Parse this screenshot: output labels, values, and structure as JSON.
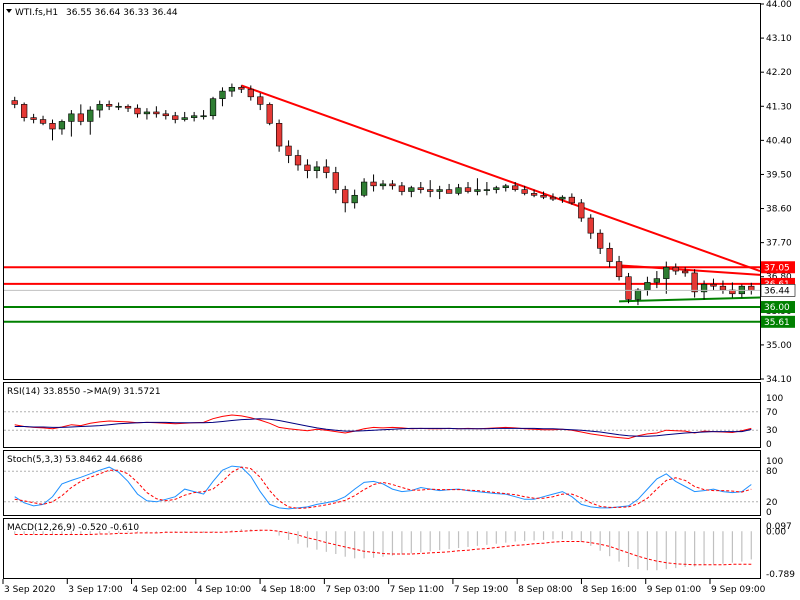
{
  "header": {
    "symbol": "WTI.fs,H1",
    "ohlc": "36.55 36.64 36.33 36.44"
  },
  "colors": {
    "bull": "#2e7d32",
    "bear": "#e53935",
    "resistance": "#ff0000",
    "support": "#008000",
    "price_tag": "#ffffff",
    "rsi": "#ff0000",
    "rsi_ma": "#000080",
    "stoch_main": "#1e90ff",
    "stoch_signal": "#ff0000",
    "macd_hist": "#c0c0c0",
    "macd_signal": "#ff0000"
  },
  "chart_data": [
    {
      "type": "candlestick",
      "name": "price",
      "ylim": [
        34.1,
        44.0
      ],
      "y_ticks": [
        "44.00",
        "43.10",
        "42.20",
        "41.30",
        "40.40",
        "39.50",
        "38.60",
        "37.70",
        "36.80",
        "35.90",
        "35.00",
        "34.10"
      ],
      "x_ticks": [
        "3 Sep 2020",
        "3 Sep 17:00",
        "4 Sep 02:00",
        "4 Sep 10:00",
        "4 Sep 18:00",
        "7 Sep 03:00",
        "7 Sep 11:00",
        "7 Sep 19:00",
        "8 Sep 08:00",
        "8 Sep 16:00",
        "9 Sep 01:00",
        "9 Sep 09:00"
      ],
      "candles": [
        [
          41.45,
          41.55,
          41.25,
          41.35
        ],
        [
          41.35,
          41.4,
          40.9,
          41.0
        ],
        [
          41.0,
          41.1,
          40.85,
          40.95
        ],
        [
          40.95,
          41.05,
          40.8,
          40.85
        ],
        [
          40.85,
          40.95,
          40.4,
          40.7
        ],
        [
          40.7,
          40.95,
          40.55,
          40.9
        ],
        [
          40.9,
          41.2,
          40.5,
          41.1
        ],
        [
          41.1,
          41.35,
          40.8,
          40.9
        ],
        [
          40.9,
          41.3,
          40.55,
          41.2
        ],
        [
          41.2,
          41.45,
          41.0,
          41.35
        ],
        [
          41.35,
          41.45,
          41.2,
          41.3
        ],
        [
          41.3,
          41.4,
          41.2,
          41.3
        ],
        [
          41.3,
          41.35,
          41.15,
          41.25
        ],
        [
          41.25,
          41.35,
          41.0,
          41.1
        ],
        [
          41.1,
          41.25,
          40.95,
          41.15
        ],
        [
          41.15,
          41.3,
          41.0,
          41.1
        ],
        [
          41.1,
          41.2,
          40.95,
          41.05
        ],
        [
          41.05,
          41.15,
          40.85,
          40.95
        ],
        [
          40.95,
          41.15,
          40.9,
          41.0
        ],
        [
          41.0,
          41.15,
          40.9,
          41.05
        ],
        [
          41.05,
          41.2,
          40.95,
          41.05
        ],
        [
          41.05,
          41.55,
          40.95,
          41.5
        ],
        [
          41.5,
          41.8,
          41.3,
          41.7
        ],
        [
          41.7,
          41.9,
          41.55,
          41.8
        ],
        [
          41.8,
          41.85,
          41.65,
          41.75
        ],
        [
          41.75,
          41.85,
          41.45,
          41.55
        ],
        [
          41.55,
          41.65,
          41.2,
          41.35
        ],
        [
          41.35,
          41.4,
          40.8,
          40.85
        ],
        [
          40.85,
          40.95,
          40.1,
          40.25
        ],
        [
          40.25,
          40.4,
          39.8,
          40.0
        ],
        [
          40.0,
          40.15,
          39.6,
          39.75
        ],
        [
          39.75,
          39.9,
          39.4,
          39.6
        ],
        [
          39.6,
          39.85,
          39.4,
          39.7
        ],
        [
          39.7,
          39.9,
          39.4,
          39.55
        ],
        [
          39.55,
          39.7,
          39.0,
          39.1
        ],
        [
          39.1,
          39.2,
          38.5,
          38.75
        ],
        [
          38.75,
          39.1,
          38.6,
          38.95
        ],
        [
          38.95,
          39.4,
          38.9,
          39.3
        ],
        [
          39.3,
          39.5,
          39.05,
          39.2
        ],
        [
          39.2,
          39.35,
          39.1,
          39.25
        ],
        [
          39.25,
          39.35,
          39.1,
          39.2
        ],
        [
          39.2,
          39.3,
          38.95,
          39.05
        ],
        [
          39.05,
          39.2,
          38.9,
          39.15
        ],
        [
          39.15,
          39.3,
          39.0,
          39.1
        ],
        [
          39.1,
          39.35,
          38.9,
          39.05
        ],
        [
          39.05,
          39.2,
          38.85,
          39.1
        ],
        [
          39.1,
          39.25,
          39.0,
          39.0
        ],
        [
          39.0,
          39.25,
          38.95,
          39.15
        ],
        [
          39.15,
          39.3,
          39.0,
          39.05
        ],
        [
          39.05,
          39.4,
          38.95,
          39.1
        ],
        [
          39.1,
          39.3,
          38.95,
          39.1
        ],
        [
          39.1,
          39.2,
          39.0,
          39.15
        ],
        [
          39.15,
          39.25,
          39.05,
          39.2
        ],
        [
          39.2,
          39.3,
          39.05,
          39.1
        ],
        [
          39.1,
          39.2,
          38.95,
          39.0
        ],
        [
          39.0,
          39.1,
          38.9,
          38.95
        ],
        [
          38.95,
          39.05,
          38.85,
          38.9
        ],
        [
          38.9,
          39.0,
          38.8,
          38.85
        ],
        [
          38.85,
          38.95,
          38.75,
          38.9
        ],
        [
          38.9,
          39.0,
          38.7,
          38.75
        ],
        [
          38.75,
          38.85,
          38.25,
          38.35
        ],
        [
          38.35,
          38.45,
          37.8,
          37.95
        ],
        [
          37.95,
          38.05,
          37.4,
          37.55
        ],
        [
          37.55,
          37.7,
          37.05,
          37.2
        ],
        [
          37.2,
          37.35,
          36.7,
          36.8
        ],
        [
          36.8,
          36.9,
          36.1,
          36.2
        ],
        [
          36.2,
          36.5,
          36.05,
          36.45
        ],
        [
          36.45,
          36.8,
          36.3,
          36.65
        ],
        [
          36.65,
          36.95,
          36.5,
          36.75
        ],
        [
          36.75,
          37.2,
          36.35,
          37.05
        ],
        [
          37.05,
          37.15,
          36.85,
          36.95
        ],
        [
          36.95,
          37.05,
          36.8,
          36.9
        ],
        [
          36.9,
          37.0,
          36.25,
          36.4
        ],
        [
          36.4,
          36.7,
          36.2,
          36.6
        ],
        [
          36.6,
          36.75,
          36.45,
          36.55
        ],
        [
          36.55,
          36.7,
          36.35,
          36.45
        ],
        [
          36.45,
          36.65,
          36.25,
          36.35
        ],
        [
          36.35,
          36.6,
          36.25,
          36.55
        ],
        [
          36.55,
          36.64,
          36.33,
          36.44
        ]
      ],
      "trendlines": [
        {
          "role": "resistance",
          "points": [
            [
              24,
              41.85
            ],
            [
              80,
              36.95
            ]
          ]
        },
        {
          "role": "resistance",
          "points": [
            [
              64,
              37.1
            ],
            [
              80,
              36.85
            ]
          ]
        },
        {
          "role": "support",
          "points": [
            [
              64,
              36.15
            ],
            [
              80,
              36.25
            ]
          ]
        }
      ],
      "levels": [
        {
          "value": 37.05,
          "label": "37.05",
          "role": "resistance"
        },
        {
          "value": 36.61,
          "label": "36.61",
          "role": "resistance"
        },
        {
          "value": 36.0,
          "label": "36.00",
          "role": "support"
        },
        {
          "value": 35.61,
          "label": "35.61",
          "role": "support"
        }
      ],
      "current_price": {
        "value": 36.44,
        "label": "36.44"
      }
    },
    {
      "type": "line",
      "name": "rsi",
      "label": "RSI(14) 33.8550  ->MA(9) 31.5721",
      "ylim": [
        0,
        100
      ],
      "y_ticks": [
        "100",
        "70",
        "30",
        "0"
      ],
      "levels": [
        70,
        30
      ],
      "series": [
        {
          "role": "rsi",
          "values": [
            42,
            38,
            36,
            35,
            33,
            37,
            42,
            40,
            45,
            48,
            50,
            49,
            48,
            46,
            47,
            46,
            45,
            44,
            45,
            46,
            47,
            55,
            60,
            63,
            61,
            57,
            52,
            45,
            36,
            33,
            31,
            29,
            32,
            30,
            27,
            24,
            28,
            33,
            36,
            35,
            36,
            35,
            33,
            34,
            33,
            33,
            34,
            33,
            34,
            33,
            34,
            35,
            36,
            35,
            33,
            32,
            31,
            31,
            32,
            30,
            26,
            22,
            19,
            16,
            14,
            12,
            18,
            22,
            24,
            30,
            29,
            28,
            24,
            28,
            27,
            26,
            25,
            29,
            33.86
          ]
        },
        {
          "role": "ma",
          "values": [
            38,
            38,
            37,
            37,
            36,
            36,
            37,
            38,
            39,
            40,
            42,
            44,
            45,
            46,
            47,
            47,
            47,
            46,
            46,
            46,
            46,
            47,
            49,
            51,
            53,
            54,
            55,
            54,
            51,
            47,
            43,
            39,
            35,
            32,
            30,
            28,
            28,
            29,
            30,
            31,
            32,
            33,
            34,
            34,
            34,
            34,
            34,
            33,
            33,
            33,
            33,
            34,
            34,
            34,
            34,
            34,
            33,
            33,
            32,
            31,
            30,
            28,
            26,
            23,
            20,
            18,
            17,
            17,
            18,
            20,
            22,
            24,
            25,
            26,
            27,
            27,
            27,
            27,
            31.57
          ]
        }
      ]
    },
    {
      "type": "line",
      "name": "stochastic",
      "label": "Stoch(5,3,3) 53.8462 44.6686",
      "ylim": [
        0,
        100
      ],
      "y_ticks": [
        "100",
        "80",
        "20",
        "0"
      ],
      "levels": [
        80,
        20
      ],
      "series": [
        {
          "role": "main",
          "values": [
            30,
            18,
            12,
            15,
            30,
            55,
            62,
            68,
            75,
            82,
            88,
            78,
            60,
            35,
            22,
            20,
            25,
            30,
            45,
            40,
            35,
            60,
            82,
            90,
            88,
            70,
            40,
            15,
            8,
            6,
            8,
            10,
            15,
            18,
            22,
            30,
            45,
            58,
            60,
            55,
            45,
            40,
            42,
            48,
            45,
            42,
            44,
            45,
            42,
            40,
            38,
            36,
            35,
            30,
            25,
            25,
            30,
            35,
            40,
            30,
            15,
            10,
            8,
            8,
            10,
            12,
            25,
            45,
            65,
            75,
            60,
            50,
            40,
            42,
            45,
            40,
            38,
            40,
            53.85
          ]
        },
        {
          "role": "signal",
          "values": [
            25,
            22,
            18,
            15,
            20,
            32,
            48,
            60,
            68,
            75,
            82,
            82,
            75,
            58,
            38,
            26,
            22,
            25,
            33,
            38,
            40,
            45,
            60,
            78,
            88,
            85,
            68,
            42,
            22,
            10,
            7,
            8,
            11,
            14,
            18,
            23,
            32,
            44,
            54,
            58,
            54,
            48,
            43,
            43,
            45,
            44,
            44,
            44,
            43,
            42,
            40,
            38,
            36,
            34,
            30,
            27,
            27,
            30,
            35,
            35,
            28,
            18,
            11,
            9,
            9,
            10,
            16,
            27,
            45,
            62,
            67,
            62,
            50,
            44,
            42,
            42,
            41,
            39,
            44.67
          ]
        }
      ]
    },
    {
      "type": "bar",
      "name": "macd",
      "label": "MACD(12,26,9) -0.520 -0.610",
      "ylim": [
        -0.789,
        0.097
      ],
      "y_ticks": [
        "0.097",
        "0.00",
        "-0.789"
      ],
      "series": [
        {
          "role": "histogram",
          "values": [
            -0.05,
            -0.05,
            -0.06,
            -0.06,
            -0.07,
            -0.07,
            -0.06,
            -0.06,
            -0.05,
            -0.04,
            -0.03,
            -0.03,
            -0.02,
            -0.02,
            -0.02,
            -0.02,
            -0.02,
            -0.03,
            -0.03,
            -0.03,
            -0.03,
            -0.02,
            0.0,
            0.02,
            0.04,
            0.04,
            0.03,
            0.0,
            -0.08,
            -0.16,
            -0.23,
            -0.3,
            -0.34,
            -0.38,
            -0.42,
            -0.47,
            -0.5,
            -0.5,
            -0.49,
            -0.47,
            -0.45,
            -0.43,
            -0.41,
            -0.39,
            -0.37,
            -0.35,
            -0.33,
            -0.31,
            -0.29,
            -0.27,
            -0.25,
            -0.23,
            -0.21,
            -0.19,
            -0.18,
            -0.17,
            -0.16,
            -0.15,
            -0.15,
            -0.16,
            -0.2,
            -0.27,
            -0.36,
            -0.46,
            -0.56,
            -0.66,
            -0.7,
            -0.72,
            -0.72,
            -0.7,
            -0.68,
            -0.66,
            -0.65,
            -0.63,
            -0.61,
            -0.6,
            -0.58,
            -0.56,
            -0.52
          ]
        },
        {
          "role": "signal",
          "values": [
            -0.06,
            -0.06,
            -0.06,
            -0.06,
            -0.06,
            -0.06,
            -0.06,
            -0.06,
            -0.06,
            -0.05,
            -0.05,
            -0.04,
            -0.04,
            -0.03,
            -0.03,
            -0.03,
            -0.02,
            -0.02,
            -0.02,
            -0.02,
            -0.02,
            -0.02,
            -0.02,
            -0.01,
            0.0,
            0.01,
            0.02,
            0.02,
            0.0,
            -0.03,
            -0.07,
            -0.12,
            -0.16,
            -0.21,
            -0.25,
            -0.29,
            -0.33,
            -0.37,
            -0.39,
            -0.41,
            -0.42,
            -0.42,
            -0.42,
            -0.41,
            -0.4,
            -0.39,
            -0.38,
            -0.36,
            -0.35,
            -0.33,
            -0.32,
            -0.3,
            -0.28,
            -0.26,
            -0.25,
            -0.23,
            -0.22,
            -0.2,
            -0.19,
            -0.19,
            -0.19,
            -0.21,
            -0.24,
            -0.28,
            -0.34,
            -0.4,
            -0.46,
            -0.51,
            -0.55,
            -0.58,
            -0.6,
            -0.61,
            -0.62,
            -0.62,
            -0.62,
            -0.62,
            -0.61,
            -0.61,
            -0.61
          ]
        }
      ]
    }
  ]
}
